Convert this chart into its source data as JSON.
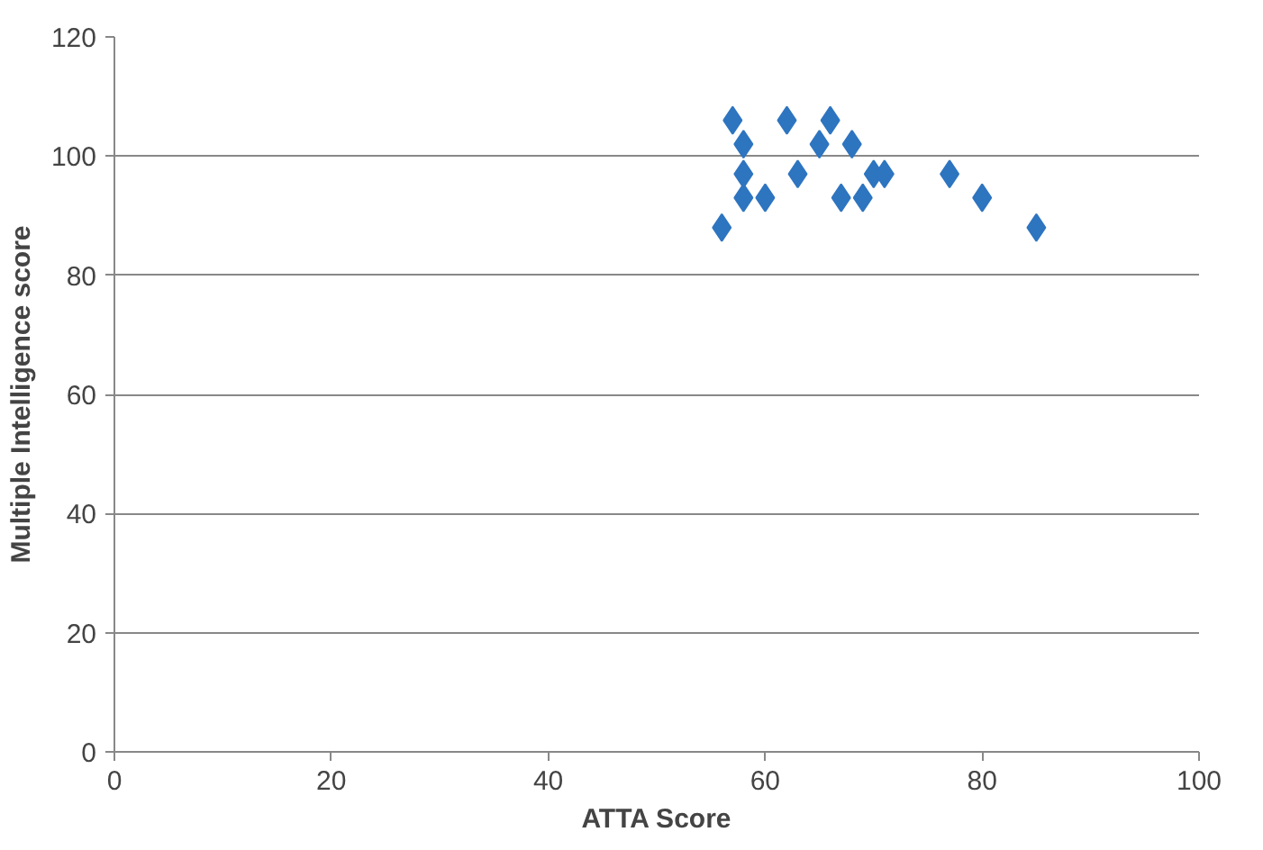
{
  "chart_data": {
    "type": "scatter",
    "xlabel": "ATTA Score",
    "ylabel": "Multiple Intelligence score",
    "x": [
      56,
      57,
      58,
      58,
      58,
      60,
      62,
      63,
      65,
      66,
      67,
      68,
      69,
      70,
      71,
      77,
      80,
      85
    ],
    "series": [
      {
        "color": "#2e75c0",
        "values": [
          88,
          106,
          102,
          97,
          93,
          93,
          106,
          97,
          102,
          106,
          93,
          102,
          93,
          97,
          97,
          97,
          93,
          88
        ]
      }
    ],
    "marker": "diamond",
    "grid": "y",
    "xlim": [
      0,
      100
    ],
    "xticks": [
      0,
      20,
      40,
      60,
      80,
      100
    ],
    "ylim": [
      0,
      120
    ],
    "yticks": [
      0,
      20,
      40,
      60,
      80,
      100,
      120
    ]
  }
}
